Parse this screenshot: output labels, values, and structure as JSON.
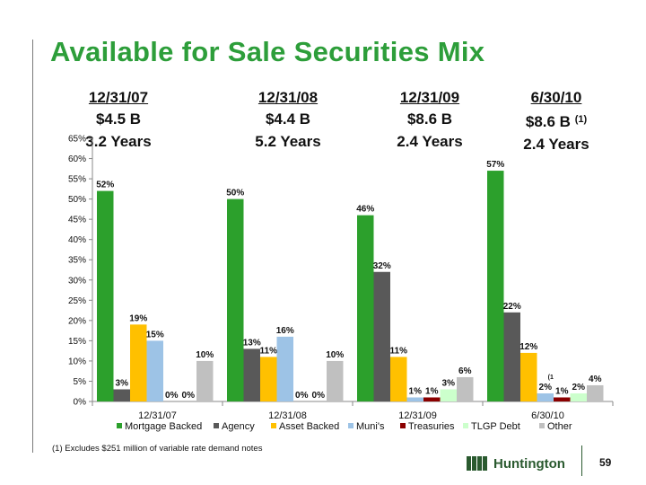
{
  "title": "Available for Sale Securities Mix",
  "periods": [
    {
      "header": "12/31/07",
      "amount": "$4.5 B",
      "note": "",
      "years": "3.2 Years"
    },
    {
      "header": "12/31/08",
      "amount": "$4.4 B",
      "note": "",
      "years": "5.2 Years"
    },
    {
      "header": "12/31/09",
      "amount": "$8.6 B",
      "note": "",
      "years": "2.4 Years"
    },
    {
      "header": "6/30/10",
      "amount": "$8.6 B",
      "note": "(1)",
      "years": "2.4 Years"
    }
  ],
  "chart_data": {
    "type": "bar",
    "categories": [
      "12/31/07",
      "12/31/08",
      "12/31/09",
      "6/30/10"
    ],
    "series": [
      {
        "name": "Mortgage Backed",
        "color": "#2ca02c",
        "values": [
          52,
          50,
          46,
          57
        ]
      },
      {
        "name": "Agency",
        "color": "#595959",
        "values": [
          3,
          13,
          32,
          22
        ]
      },
      {
        "name": "Asset Backed",
        "color": "#ffc000",
        "values": [
          19,
          11,
          11,
          12
        ]
      },
      {
        "name": "Muni's",
        "color": "#9dc3e6",
        "values": [
          15,
          16,
          1,
          2
        ]
      },
      {
        "name": "Treasuries",
        "color": "#8b0000",
        "values": [
          0,
          0,
          1,
          1
        ]
      },
      {
        "name": "TLGP Debt",
        "color": "#ccffcc",
        "values": [
          0,
          0,
          3,
          2
        ]
      },
      {
        "name": "Other",
        "color": "#c0c0c0",
        "values": [
          10,
          10,
          6,
          4
        ]
      }
    ],
    "data_labels": [
      [
        "52%",
        "3%",
        "19%",
        "15%",
        "0%",
        "0%",
        "10%"
      ],
      [
        "50%",
        "13%",
        "11%",
        "16%",
        "0%",
        "0%",
        "10%"
      ],
      [
        "46%",
        "32%",
        "11%",
        "1%",
        "1%",
        "3%",
        "6%"
      ],
      [
        "57%",
        "22%",
        "12%",
        "2%",
        "1%",
        "2%",
        "4%"
      ]
    ],
    "y_tick_labels": [
      "0%",
      "5%",
      "10%",
      "15%",
      "20%",
      "25%",
      "30%",
      "35%",
      "40%",
      "45%",
      "50%",
      "55%",
      "60%",
      "65%"
    ],
    "ylim": [
      0,
      65
    ],
    "legend_position": "bottom",
    "grid": false,
    "annotation": "(1"
  },
  "footnote": "(1)  Excludes $251 million of variable rate demand notes",
  "logo_text": "Huntington",
  "page_number": "59"
}
